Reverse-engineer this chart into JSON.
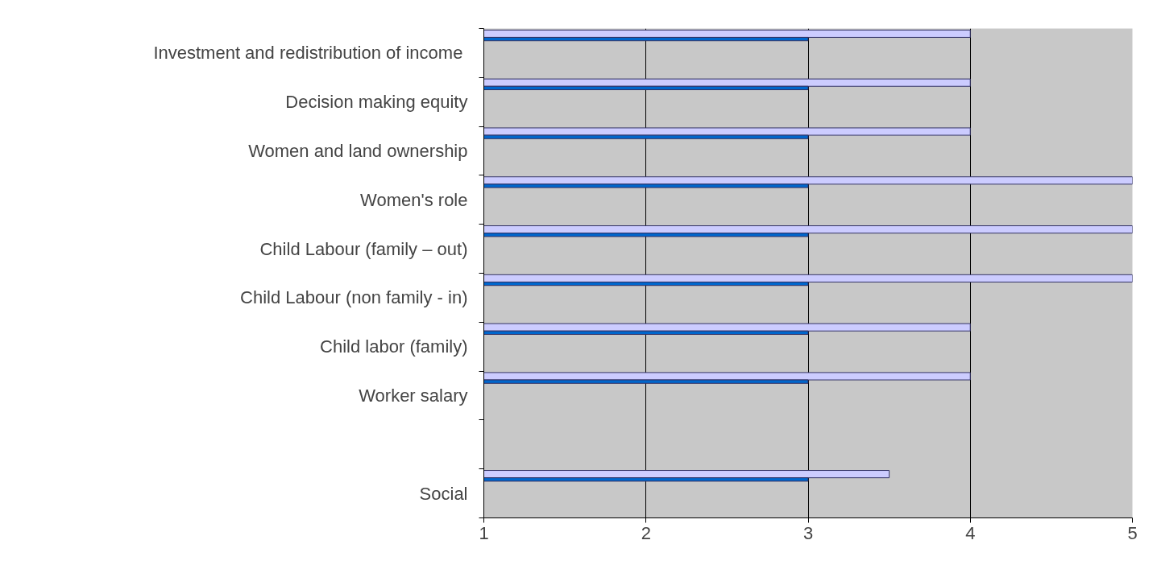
{
  "chart_data": {
    "type": "bar",
    "orientation": "horizontal",
    "categories": [
      "Investment  and redistribution of income",
      "Decision making equity",
      "Women and land ownership",
      "Women's role",
      "Child Labour (family – out)",
      "Child Labour (non family - in)",
      "Child labor (family)",
      "Worker salary",
      null,
      "Social"
    ],
    "series": [
      {
        "color": "#ccccff",
        "values": [
          4,
          4,
          4,
          5,
          5,
          5,
          4,
          4,
          null,
          3.5
        ]
      },
      {
        "color": "#0066cc",
        "values": [
          3,
          3,
          3,
          3,
          3,
          3,
          3,
          3,
          null,
          3
        ]
      }
    ],
    "xlim": [
      1,
      5
    ],
    "xticks": [
      1,
      2,
      3,
      4,
      5
    ],
    "grid": "x"
  }
}
